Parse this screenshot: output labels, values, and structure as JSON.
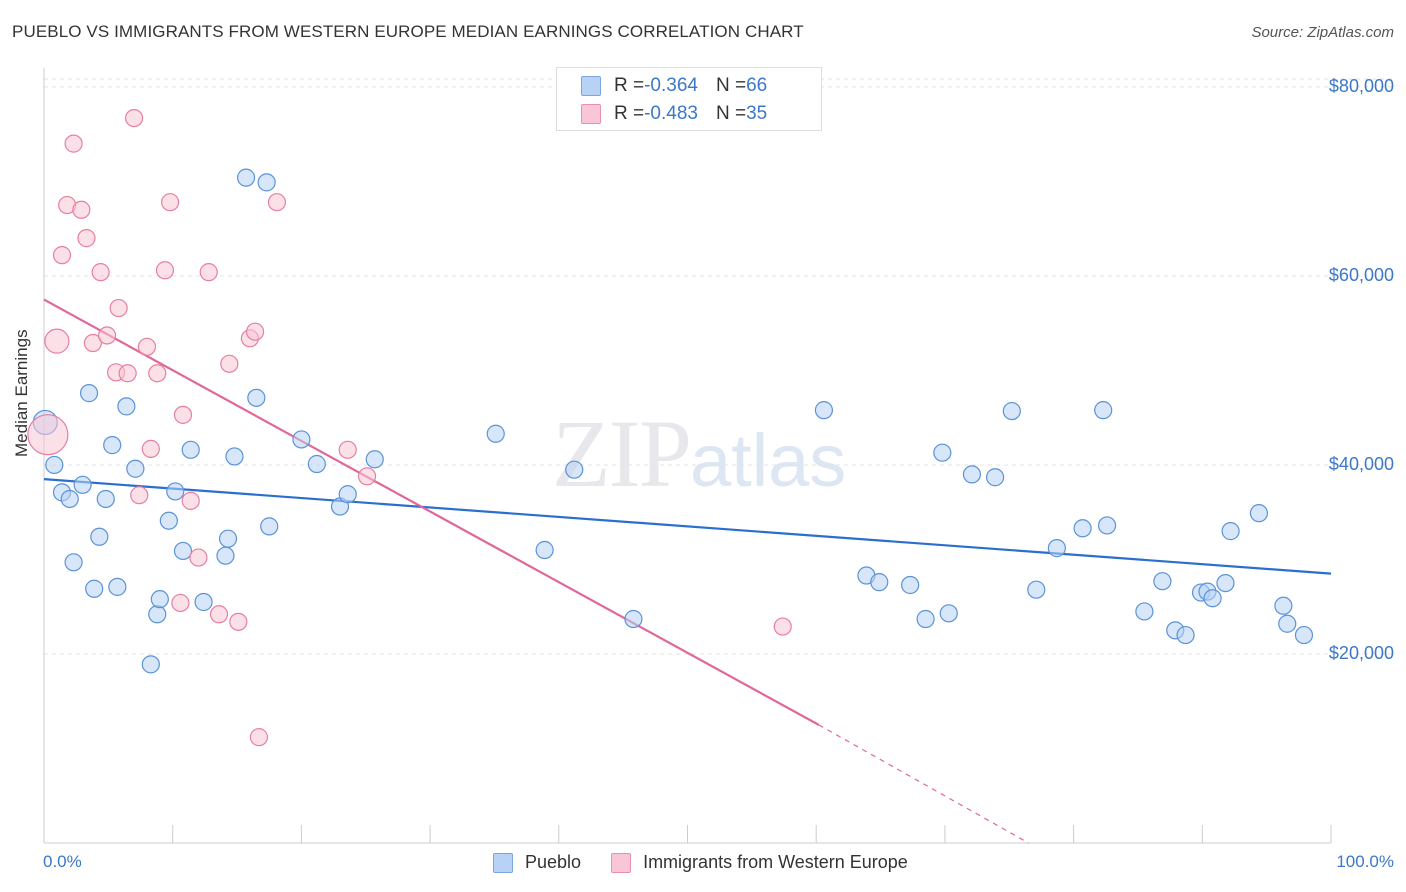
{
  "title": "PUEBLO VS IMMIGRANTS FROM WESTERN EUROPE MEDIAN EARNINGS CORRELATION CHART",
  "source": "Source: ZipAtlas.com",
  "watermark": {
    "zip": "ZIP",
    "atlas": "atlas"
  },
  "legend": {
    "rows": [
      {
        "r_label": "R = ",
        "r_value": "-0.364",
        "n_label": "N = ",
        "n_value": "66"
      },
      {
        "r_label": "R = ",
        "r_value": "-0.483",
        "n_label": "N = ",
        "n_value": "35"
      }
    ]
  },
  "bottom_legend": [
    "Pueblo",
    "Immigrants from Western Europe"
  ],
  "chart_data": {
    "type": "scatter",
    "ylabel": "Median Earnings",
    "xlim": [
      0,
      100
    ],
    "ylim": [
      0,
      82000
    ],
    "x_tick_labels": [
      "0.0%",
      "100.0%"
    ],
    "y_ticks": [
      20000,
      40000,
      60000,
      80000
    ],
    "y_tick_labels": [
      "$20,000",
      "$40,000",
      "$60,000",
      "$80,000"
    ],
    "grid": "horizontal dashed",
    "colors": {
      "pueblo": "#5b93d8",
      "immigrants": "#e87fa1",
      "pueblo_line": "#2b6fce",
      "immigrants_line": "#e0679a"
    },
    "series": [
      {
        "name": "Pueblo",
        "r": -0.364,
        "n": 66,
        "points": [
          [
            0.1,
            44500
          ],
          [
            0.8,
            40000
          ],
          [
            1.4,
            37100
          ],
          [
            2.0,
            36400
          ],
          [
            2.3,
            29700
          ],
          [
            3.0,
            37900
          ],
          [
            3.5,
            47600
          ],
          [
            3.9,
            26900
          ],
          [
            4.3,
            32400
          ],
          [
            4.8,
            36400
          ],
          [
            5.3,
            42100
          ],
          [
            5.7,
            27100
          ],
          [
            6.4,
            46200
          ],
          [
            7.1,
            39600
          ],
          [
            8.3,
            18900
          ],
          [
            8.8,
            24200
          ],
          [
            9.0,
            25800
          ],
          [
            9.7,
            34100
          ],
          [
            10.2,
            37200
          ],
          [
            10.8,
            30900
          ],
          [
            11.4,
            41600
          ],
          [
            12.4,
            25500
          ],
          [
            14.1,
            30400
          ],
          [
            14.3,
            32200
          ],
          [
            14.8,
            40900
          ],
          [
            15.7,
            70400
          ],
          [
            16.5,
            47100
          ],
          [
            17.3,
            69900
          ],
          [
            17.5,
            33500
          ],
          [
            20.0,
            42700
          ],
          [
            21.2,
            40100
          ],
          [
            23.0,
            35600
          ],
          [
            23.6,
            36900
          ],
          [
            25.7,
            40600
          ],
          [
            35.1,
            43300
          ],
          [
            38.9,
            31000
          ],
          [
            41.2,
            39500
          ],
          [
            45.8,
            23700
          ],
          [
            60.6,
            45800
          ],
          [
            63.9,
            28300
          ],
          [
            64.9,
            27600
          ],
          [
            67.3,
            27300
          ],
          [
            68.5,
            23700
          ],
          [
            69.8,
            41300
          ],
          [
            70.3,
            24300
          ],
          [
            72.1,
            39000
          ],
          [
            73.9,
            38700
          ],
          [
            75.2,
            45700
          ],
          [
            77.1,
            26800
          ],
          [
            78.7,
            31200
          ],
          [
            80.7,
            33300
          ],
          [
            82.3,
            45800
          ],
          [
            82.6,
            33600
          ],
          [
            85.5,
            24500
          ],
          [
            86.9,
            27700
          ],
          [
            87.9,
            22500
          ],
          [
            88.7,
            22000
          ],
          [
            89.9,
            26500
          ],
          [
            90.4,
            26600
          ],
          [
            90.8,
            25900
          ],
          [
            91.8,
            27500
          ],
          [
            92.2,
            33000
          ],
          [
            94.4,
            34900
          ],
          [
            96.3,
            25100
          ],
          [
            96.6,
            23200
          ],
          [
            97.9,
            22000
          ]
        ]
      },
      {
        "name": "Immigrants from Western Europe",
        "r": -0.483,
        "n": 35,
        "points": [
          [
            0.3,
            43200
          ],
          [
            1.0,
            53100
          ],
          [
            1.4,
            62200
          ],
          [
            1.8,
            67500
          ],
          [
            2.3,
            74000
          ],
          [
            2.9,
            67000
          ],
          [
            3.3,
            64000
          ],
          [
            3.8,
            52900
          ],
          [
            4.4,
            60400
          ],
          [
            4.9,
            53700
          ],
          [
            5.6,
            49800
          ],
          [
            5.8,
            56600
          ],
          [
            6.5,
            49700
          ],
          [
            7.0,
            76700
          ],
          [
            7.4,
            36800
          ],
          [
            8.0,
            52500
          ],
          [
            8.3,
            41700
          ],
          [
            8.8,
            49700
          ],
          [
            9.4,
            60600
          ],
          [
            9.8,
            67800
          ],
          [
            10.8,
            45300
          ],
          [
            10.6,
            25400
          ],
          [
            11.4,
            36200
          ],
          [
            12.0,
            30200
          ],
          [
            12.8,
            60400
          ],
          [
            13.6,
            24200
          ],
          [
            14.4,
            50700
          ],
          [
            15.1,
            23400
          ],
          [
            16.0,
            53400
          ],
          [
            16.4,
            54100
          ],
          [
            16.7,
            11200
          ],
          [
            18.1,
            67800
          ],
          [
            23.6,
            41600
          ],
          [
            25.1,
            38800
          ],
          [
            57.4,
            22900
          ]
        ]
      }
    ],
    "trend_lines": [
      {
        "series": "Pueblo",
        "x": [
          0,
          100
        ],
        "y": [
          38500,
          28500
        ]
      },
      {
        "series": "Immigrants from Western Europe",
        "x": [
          0,
          60.2
        ],
        "y": [
          57500,
          12500
        ],
        "dashed_to": [
          76.5,
          0
        ]
      }
    ]
  }
}
